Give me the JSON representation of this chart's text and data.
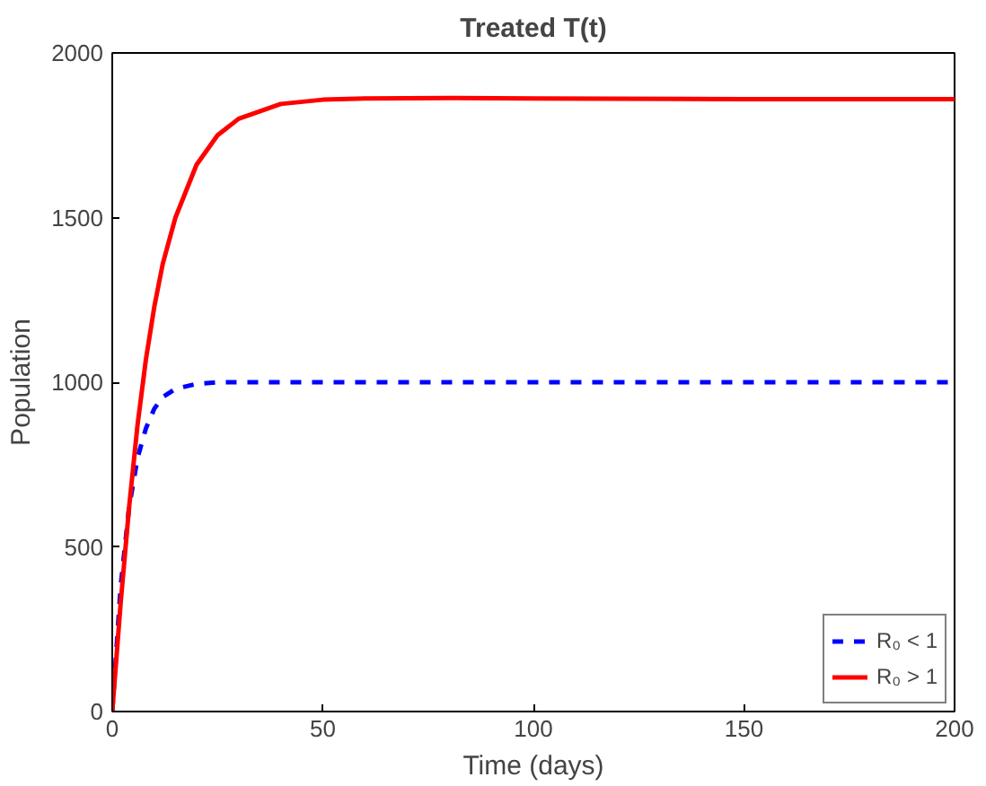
{
  "chart_data": {
    "type": "line",
    "title": "Treated T(t)",
    "xlabel": "Time (days)",
    "ylabel": "Population",
    "xlim": [
      0,
      200
    ],
    "ylim": [
      0,
      2000
    ],
    "xticks": [
      0,
      50,
      100,
      150,
      200
    ],
    "yticks": [
      0,
      500,
      1000,
      1500,
      2000
    ],
    "grid": false,
    "legend": "bottom right",
    "series": [
      {
        "name": "R₀ < 1",
        "color": "#0000ff",
        "line_style": "dashed",
        "x": [
          0,
          2,
          4,
          6,
          8,
          10,
          12,
          15,
          20,
          25,
          30,
          50,
          100,
          200
        ],
        "values": [
          0,
          380,
          620,
          770,
          860,
          920,
          955,
          980,
          995,
          1000,
          1000,
          1000,
          1000,
          1000
        ]
      },
      {
        "name": "R₀ > 1",
        "color": "#ff0000",
        "line_style": "solid",
        "x": [
          0,
          2,
          4,
          6,
          8,
          10,
          12,
          15,
          20,
          25,
          30,
          40,
          50,
          60,
          80,
          100,
          150,
          200
        ],
        "values": [
          0,
          330,
          620,
          870,
          1070,
          1230,
          1360,
          1500,
          1660,
          1750,
          1800,
          1845,
          1858,
          1862,
          1863,
          1862,
          1860,
          1860
        ]
      }
    ]
  }
}
